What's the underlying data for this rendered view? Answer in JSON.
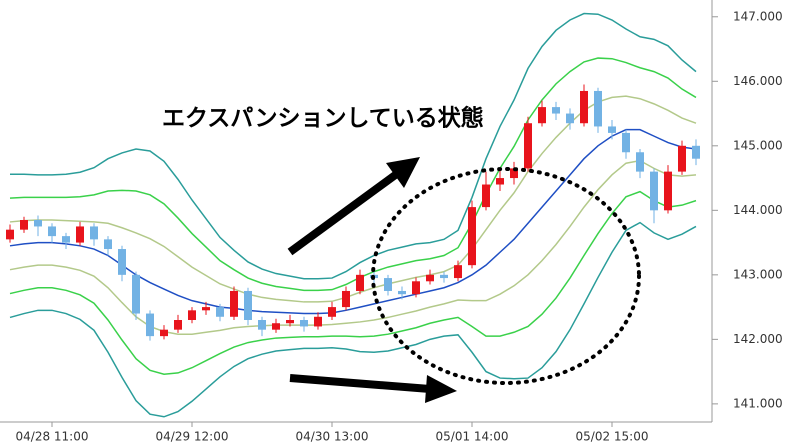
{
  "chart_data": {
    "type": "candlestick",
    "annotation": "エクスパンションしている状態",
    "categories": [
      null,
      null,
      null,
      "04/28 11:00",
      null,
      null,
      null,
      null,
      null,
      null,
      null,
      null,
      null,
      "04/29 12:00",
      null,
      null,
      null,
      null,
      null,
      null,
      null,
      null,
      null,
      "04/30 13:00",
      null,
      null,
      null,
      null,
      null,
      null,
      null,
      null,
      null,
      "05/01 14:00",
      null,
      null,
      null,
      null,
      null,
      null,
      null,
      null,
      null,
      "05/02 15:00",
      null,
      null,
      null,
      null,
      null,
      null
    ],
    "open": [
      143.55,
      143.7,
      143.85,
      143.75,
      143.6,
      143.5,
      143.75,
      143.55,
      143.4,
      143.0,
      142.4,
      142.05,
      142.15,
      142.3,
      142.45,
      142.5,
      142.35,
      142.75,
      142.3,
      142.15,
      142.25,
      142.3,
      142.2,
      142.35,
      142.5,
      142.75,
      143.0,
      142.95,
      142.75,
      142.7,
      142.9,
      143.0,
      142.95,
      143.15,
      144.05,
      144.4,
      144.5,
      144.65,
      145.35,
      145.6,
      145.5,
      145.35,
      145.85,
      145.3,
      145.2,
      144.9,
      144.6,
      144.0,
      144.6,
      145.0
    ],
    "high": [
      143.78,
      143.9,
      143.92,
      143.8,
      143.65,
      143.82,
      143.8,
      143.6,
      143.45,
      143.05,
      142.45,
      142.22,
      142.38,
      142.5,
      142.58,
      142.55,
      142.82,
      142.8,
      142.35,
      142.32,
      142.38,
      142.35,
      142.42,
      142.58,
      142.82,
      143.08,
      143.05,
      143.0,
      142.82,
      142.96,
      143.08,
      143.05,
      143.22,
      144.15,
      144.6,
      144.65,
      144.75,
      145.45,
      145.7,
      145.68,
      145.58,
      145.95,
      145.9,
      145.4,
      145.25,
      144.95,
      144.65,
      144.7,
      145.08,
      145.1
    ],
    "low": [
      143.5,
      143.65,
      143.6,
      143.5,
      143.4,
      143.45,
      143.45,
      143.3,
      142.9,
      142.3,
      141.98,
      142.0,
      142.1,
      142.25,
      142.38,
      142.28,
      142.3,
      142.22,
      142.05,
      142.1,
      142.2,
      142.12,
      142.15,
      142.3,
      142.45,
      142.7,
      142.85,
      142.68,
      142.62,
      142.65,
      142.85,
      142.88,
      142.9,
      143.1,
      144.0,
      144.3,
      144.4,
      144.6,
      145.3,
      145.4,
      145.25,
      145.3,
      145.2,
      145.1,
      144.8,
      144.5,
      143.8,
      143.95,
      144.55,
      144.7
    ],
    "close": [
      143.7,
      143.85,
      143.75,
      143.6,
      143.5,
      143.75,
      143.55,
      143.4,
      143.0,
      142.4,
      142.05,
      142.15,
      142.3,
      142.45,
      142.5,
      142.35,
      142.75,
      142.3,
      142.15,
      142.25,
      142.3,
      142.2,
      142.35,
      142.5,
      142.75,
      143.0,
      142.95,
      142.75,
      142.7,
      142.9,
      143.0,
      142.95,
      143.15,
      144.05,
      144.4,
      144.5,
      144.65,
      145.35,
      145.6,
      145.5,
      145.35,
      145.85,
      145.3,
      145.2,
      144.9,
      144.6,
      144.0,
      144.6,
      145.0,
      144.8
    ],
    "up_color": "#e8141c",
    "down_color": "#72b2e4",
    "series": [
      {
        "color": "#2a9d9a",
        "values": [
          144.56,
          144.56,
          144.55,
          144.55,
          144.56,
          144.59,
          144.66,
          144.8,
          144.89,
          144.95,
          144.92,
          144.76,
          144.48,
          144.16,
          143.87,
          143.58,
          143.38,
          143.2,
          143.09,
          143.02,
          142.98,
          142.94,
          142.94,
          142.95,
          143.05,
          143.19,
          143.3,
          143.38,
          143.43,
          143.48,
          143.5,
          143.55,
          143.69,
          144.2,
          144.8,
          145.3,
          145.71,
          146.2,
          146.54,
          146.79,
          146.95,
          147.05,
          147.04,
          146.95,
          146.81,
          146.69,
          146.65,
          146.55,
          146.33,
          146.15
        ]
      },
      {
        "color": "#3ad14a",
        "values": [
          144.19,
          144.2,
          144.2,
          144.2,
          144.2,
          144.21,
          144.24,
          144.3,
          144.31,
          144.3,
          144.24,
          144.1,
          143.88,
          143.64,
          143.43,
          143.22,
          143.08,
          142.95,
          142.87,
          142.82,
          142.79,
          142.76,
          142.76,
          142.77,
          142.85,
          142.96,
          143.05,
          143.12,
          143.17,
          143.22,
          143.25,
          143.3,
          143.42,
          143.8,
          144.25,
          144.65,
          144.99,
          145.4,
          145.71,
          145.96,
          146.15,
          146.3,
          146.36,
          146.35,
          146.29,
          146.21,
          146.15,
          146.05,
          145.88,
          145.75
        ]
      },
      {
        "color": "#b3c98a",
        "values": [
          143.82,
          143.84,
          143.85,
          143.85,
          143.84,
          143.83,
          143.82,
          143.8,
          143.73,
          143.65,
          143.56,
          143.44,
          143.28,
          143.12,
          142.99,
          142.86,
          142.78,
          142.7,
          142.65,
          142.62,
          142.6,
          142.58,
          142.58,
          142.59,
          142.65,
          142.73,
          142.8,
          142.86,
          142.91,
          142.96,
          143.0,
          143.05,
          143.15,
          143.4,
          143.7,
          144.0,
          144.27,
          144.6,
          144.88,
          145.13,
          145.35,
          145.55,
          145.68,
          145.75,
          145.77,
          145.73,
          145.65,
          145.55,
          145.43,
          145.35
        ]
      },
      {
        "color": "#1f4fc4",
        "values": [
          143.45,
          143.48,
          143.5,
          143.5,
          143.48,
          143.45,
          143.4,
          143.3,
          143.15,
          143.0,
          142.88,
          142.78,
          142.68,
          142.6,
          142.55,
          142.5,
          142.48,
          142.45,
          142.43,
          142.42,
          142.41,
          142.4,
          142.4,
          142.41,
          142.45,
          142.5,
          142.55,
          142.6,
          142.65,
          142.7,
          142.75,
          142.8,
          142.88,
          143.0,
          143.15,
          143.35,
          143.55,
          143.8,
          144.05,
          144.3,
          144.55,
          144.8,
          145.0,
          145.15,
          145.25,
          145.25,
          145.15,
          145.05,
          144.98,
          144.95
        ]
      },
      {
        "color": "#b3c98a",
        "values": [
          143.08,
          143.12,
          143.15,
          143.15,
          143.12,
          143.07,
          142.98,
          142.8,
          142.57,
          142.35,
          142.2,
          142.12,
          142.08,
          142.08,
          142.11,
          142.14,
          142.18,
          142.2,
          142.21,
          142.22,
          142.22,
          142.22,
          142.22,
          142.23,
          142.25,
          142.27,
          142.3,
          142.34,
          142.39,
          142.44,
          142.5,
          142.55,
          142.61,
          142.6,
          142.6,
          142.7,
          142.83,
          143.0,
          143.22,
          143.47,
          143.75,
          144.05,
          144.32,
          144.55,
          144.73,
          144.77,
          144.65,
          144.55,
          144.53,
          144.55
        ]
      },
      {
        "color": "#3ad14a",
        "values": [
          142.71,
          142.76,
          142.8,
          142.8,
          142.76,
          142.69,
          142.56,
          142.3,
          141.99,
          141.7,
          141.52,
          141.46,
          141.48,
          141.56,
          141.67,
          141.78,
          141.88,
          141.95,
          141.99,
          142.02,
          142.03,
          142.04,
          142.04,
          142.05,
          142.05,
          142.04,
          142.05,
          142.08,
          142.13,
          142.18,
          142.25,
          142.3,
          142.34,
          142.2,
          142.05,
          142.05,
          142.11,
          142.2,
          142.39,
          142.64,
          142.95,
          143.3,
          143.64,
          143.95,
          144.21,
          144.29,
          144.15,
          144.05,
          144.08,
          144.15
        ]
      },
      {
        "color": "#2a9d9a",
        "values": [
          142.34,
          142.4,
          142.45,
          142.45,
          142.4,
          142.31,
          142.14,
          141.8,
          141.41,
          141.05,
          140.84,
          140.8,
          140.88,
          141.04,
          141.23,
          141.42,
          141.58,
          141.7,
          141.77,
          141.82,
          141.84,
          141.86,
          141.86,
          141.87,
          141.85,
          141.81,
          141.8,
          141.82,
          141.87,
          141.92,
          142.0,
          142.05,
          142.07,
          141.8,
          141.5,
          141.4,
          141.39,
          141.4,
          141.56,
          141.81,
          142.15,
          142.55,
          142.96,
          143.35,
          143.69,
          143.81,
          143.65,
          143.55,
          143.63,
          143.75
        ]
      }
    ],
    "ylim": [
      140.75,
      147.26
    ],
    "yticks": [
      {
        "value": 141,
        "label": "141.000"
      },
      {
        "value": 142,
        "label": "142.000"
      },
      {
        "value": 143,
        "label": "143.000"
      },
      {
        "value": 144,
        "label": "144.000"
      },
      {
        "value": 145,
        "label": "145.000"
      },
      {
        "value": 146,
        "label": "146.000"
      },
      {
        "value": 147,
        "label": "147.000"
      }
    ]
  }
}
